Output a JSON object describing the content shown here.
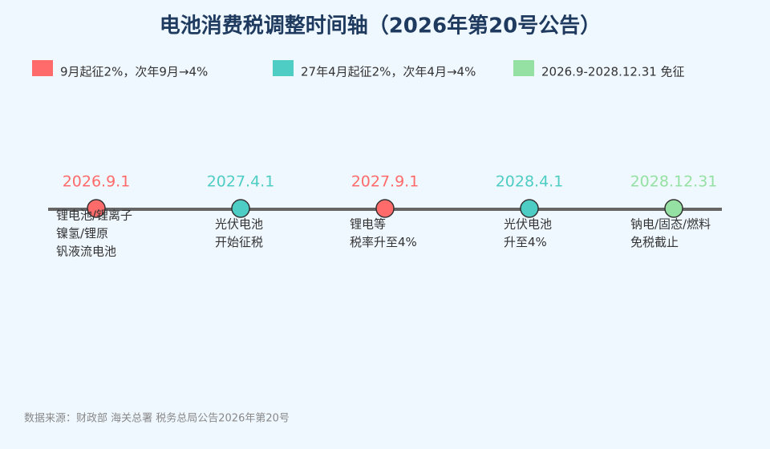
{
  "title": "电池消费税调整时间轴（2026年第20号公告）",
  "legend": [
    {
      "label": "9月起征2%，次年9月→4%",
      "color": "#ff6b6b"
    },
    {
      "label": "27年4月起征2%，次年4月→4%",
      "color": "#4ecdc4"
    },
    {
      "label": "2026.9-2028.12.31 免征",
      "color": "#95e1a3"
    }
  ],
  "events": [
    {
      "date": "2026.9.1",
      "color": "#ff6b6b",
      "lines": [
        "锂电池/锂离子",
        "镍氢/锂原",
        "钒液流电池"
      ]
    },
    {
      "date": "2027.4.1",
      "color": "#4ecdc4",
      "lines": [
        "光伏电池",
        "开始征税"
      ]
    },
    {
      "date": "2027.9.1",
      "color": "#ff6b6b",
      "lines": [
        "锂电等",
        "税率升至4%"
      ]
    },
    {
      "date": "2028.4.1",
      "color": "#4ecdc4",
      "lines": [
        "光伏电池",
        "升至4%"
      ]
    },
    {
      "date": "2028.12.31",
      "color": "#95e1a3",
      "lines": [
        "钠电/固态/燃料",
        "免税截止"
      ]
    }
  ],
  "source": "数据来源：财政部 海关总署 税务总局公告2026年第20号"
}
